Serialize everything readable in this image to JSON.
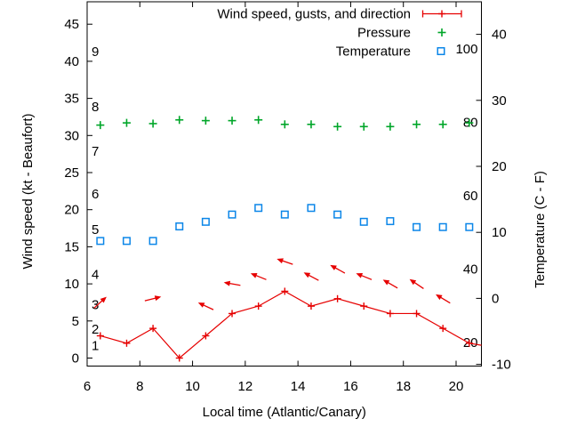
{
  "chart_data": {
    "type": "line",
    "title": "",
    "xlabel": "Local time (Atlantic/Canary)",
    "ylabel_left": "Wind speed (kt - Beaufort)",
    "ylabel_right": "Temperature (C - F)",
    "x_range": [
      6,
      21
    ],
    "x_ticks": [
      6,
      8,
      10,
      12,
      14,
      16,
      18,
      20
    ],
    "y_left_range": [
      -1.1,
      48.0
    ],
    "y_left_ticks": [
      0,
      5,
      10,
      15,
      20,
      25,
      30,
      35,
      40,
      45
    ],
    "y_right_range": [
      -10.3,
      44.9
    ],
    "y_right_ticks": [
      -10,
      0,
      10,
      20,
      30,
      40
    ],
    "grid": false,
    "legend_position": "inside top right",
    "beaufort_scale_labels": [
      {
        "text": "1",
        "kt": 1.7
      },
      {
        "text": "2",
        "kt": 3.9
      },
      {
        "text": "3",
        "kt": 7.2
      },
      {
        "text": "4",
        "kt": 11.3
      },
      {
        "text": "5",
        "kt": 17.3
      },
      {
        "text": "6",
        "kt": 22.1
      },
      {
        "text": "7",
        "kt": 27.9
      },
      {
        "text": "8",
        "kt": 33.9
      },
      {
        "text": "9",
        "kt": 41.3
      }
    ],
    "fahrenheit_scale_labels": [
      {
        "text": "20",
        "f": 20
      },
      {
        "text": "40",
        "f": 40
      },
      {
        "text": "60",
        "f": 60
      },
      {
        "text": "80",
        "f": 80
      },
      {
        "text": "100",
        "f": 100
      }
    ],
    "legend": [
      {
        "label": "Wind speed, gusts, and direction",
        "marker": "line-with-plus-and-caps",
        "color": "#e60000"
      },
      {
        "label": "Pressure",
        "marker": "plus",
        "color": "#00a629"
      },
      {
        "label": "Temperature",
        "marker": "open-square",
        "color": "#0b86e8"
      }
    ],
    "x_hours": [
      6.5,
      7.5,
      8.5,
      9.5,
      10.5,
      11.5,
      12.5,
      13.5,
      14.5,
      15.5,
      16.5,
      17.5,
      18.5,
      19.5,
      20.5
    ],
    "series": [
      {
        "name": "wind-speed",
        "axis": "left",
        "unit": "kt",
        "color": "#e60000",
        "values": [
          3,
          2,
          4,
          0,
          3,
          6,
          7,
          9,
          7,
          8,
          7,
          6,
          6,
          4,
          2
        ],
        "exit_segment": {
          "x_hour": 21.0,
          "value": 1.7
        }
      },
      {
        "name": "wind-gusts",
        "axis": "left",
        "unit": "kt",
        "color": "#e60000",
        "x_hours": [
          6.5,
          8.5,
          10.5,
          11.5,
          12.5,
          13.5,
          14.5,
          15.5,
          16.5,
          17.5,
          18.5,
          19.5
        ],
        "values": [
          7.5,
          8,
          7,
          10,
          11,
          13,
          11,
          12,
          11,
          10,
          10,
          8
        ],
        "arrow_angles_deg": [
          42,
          14,
          155,
          170,
          158,
          161,
          152,
          151,
          158,
          150,
          146,
          149
        ]
      },
      {
        "name": "pressure",
        "axis": "left",
        "unit": "left-axis-units",
        "color": "#00a629",
        "values": [
          31.4,
          31.7,
          31.6,
          32.1,
          32.0,
          32.0,
          32.1,
          31.5,
          31.5,
          31.2,
          31.2,
          31.2,
          31.5,
          31.5,
          31.7
        ]
      },
      {
        "name": "temperature",
        "axis": "right",
        "unit": "C",
        "color": "#0b86e8",
        "values": [
          8.7,
          8.7,
          8.7,
          10.9,
          11.6,
          12.7,
          13.7,
          12.7,
          13.7,
          12.7,
          11.6,
          11.7,
          10.8,
          10.8,
          10.8
        ]
      }
    ]
  },
  "colors": {
    "background": "#ffffff",
    "axis": "#000000",
    "text": "#000000",
    "wind": "#e60000",
    "pressure": "#00a629",
    "temperature": "#0b86e8"
  }
}
